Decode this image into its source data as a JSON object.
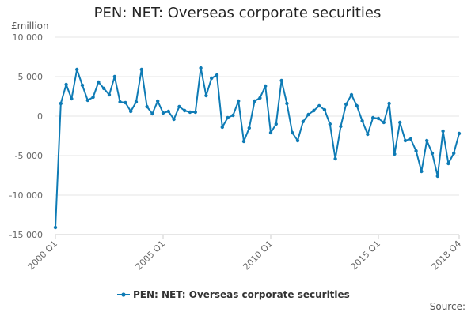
{
  "chart_data": {
    "type": "line",
    "title": "PEN: NET: Overseas corporate securities",
    "ylabel": "£million",
    "xlabel": "",
    "ylim": [
      -15000,
      10000
    ],
    "yticks": [
      10000,
      5000,
      0,
      -5000,
      -10000,
      -15000
    ],
    "ytick_labels": [
      "10 000",
      "5 000",
      "0",
      "-5 000",
      "-10 000",
      "-15 000"
    ],
    "xtick_labels": [
      "2000 Q1",
      "2005 Q1",
      "2010 Q1",
      "2015 Q1",
      "2018 Q4"
    ],
    "xtick_index": [
      0,
      20,
      40,
      60,
      75
    ],
    "grid": true,
    "legend_position": "bottom",
    "series": [
      {
        "name": "PEN: NET: Overseas corporate securities",
        "color": "#0e7bb5",
        "values": [
          -14100,
          1600,
          4000,
          2200,
          5900,
          3900,
          2000,
          2400,
          4300,
          3500,
          2700,
          5000,
          1800,
          1700,
          600,
          1800,
          5900,
          1200,
          300,
          1900,
          400,
          600,
          -400,
          1200,
          700,
          500,
          500,
          6100,
          2600,
          4800,
          5200,
          -1400,
          -200,
          100,
          1900,
          -3200,
          -1500,
          1900,
          2300,
          3800,
          -2100,
          -1000,
          4500,
          1600,
          -2100,
          -3100,
          -700,
          200,
          700,
          1300,
          800,
          -1000,
          -5400,
          -1300,
          1500,
          2700,
          1300,
          -600,
          -2300,
          -200,
          -300,
          -800,
          1600,
          -4800,
          -800,
          -3100,
          -2900,
          -4400,
          -7000,
          -3100,
          -4700,
          -7600,
          -1900,
          -6000,
          -4700,
          -2200
        ]
      }
    ]
  },
  "source_label": "Source:"
}
